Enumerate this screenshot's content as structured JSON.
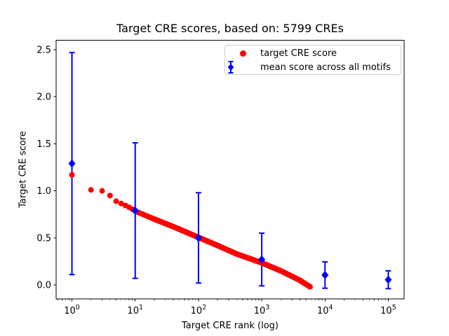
{
  "figure": {
    "title": "Target CRE scores, based on: 5799 CREs",
    "xlabel": "Target CRE rank (log)",
    "ylabel": "Target CRE score"
  },
  "legend": {
    "position": "upper right",
    "items": [
      {
        "label": "target CRE score",
        "marker": "red-circle",
        "color": "#ff0000"
      },
      {
        "label": "mean score across all motifs",
        "marker": "blue-diamond-errorbar",
        "color": "#0000ff"
      }
    ]
  },
  "chart_data": {
    "type": "scatter",
    "title": "Target CRE scores, based on: 5799 CREs",
    "xlabel": "Target CRE rank (log)",
    "ylabel": "Target CRE score",
    "x_scale": "log10",
    "xlim_log10": [
      -0.25,
      5.25
    ],
    "ylim": [
      -0.15,
      2.6
    ],
    "x_major_tick_exponents": [
      0,
      1,
      2,
      3,
      4,
      5
    ],
    "x_minor_tick_subs": [
      2,
      3,
      4,
      5,
      6,
      7,
      8,
      9
    ],
    "y_ticks": [
      0.0,
      0.5,
      1.0,
      1.5,
      2.0,
      2.5
    ],
    "grid": false,
    "background": "#ffffff",
    "text_color": "#000000",
    "series": [
      {
        "name": "target CRE score",
        "type": "dots",
        "marker": "circle",
        "color": "#ff0000",
        "n_points": 5799,
        "rank_range": [
          1,
          5799
        ],
        "anchors_log10rank_value": [
          [
            0.0,
            1.17
          ],
          [
            0.301,
            1.01
          ],
          [
            0.477,
            1.0
          ],
          [
            0.602,
            0.95
          ],
          [
            0.699,
            0.89
          ],
          [
            0.778,
            0.865
          ],
          [
            0.845,
            0.845
          ],
          [
            0.903,
            0.825
          ],
          [
            0.954,
            0.805
          ],
          [
            1.0,
            0.785
          ],
          [
            1.3,
            0.7
          ],
          [
            1.6,
            0.62
          ],
          [
            2.0,
            0.505
          ],
          [
            2.3,
            0.42
          ],
          [
            2.6,
            0.33
          ],
          [
            3.0,
            0.235
          ],
          [
            3.3,
            0.15
          ],
          [
            3.6,
            0.05
          ],
          [
            3.763,
            -0.02
          ]
        ]
      },
      {
        "name": "mean score across all motifs",
        "type": "errorbar",
        "marker": "diamond",
        "color": "#0000ff",
        "ranks": [
          1,
          10,
          100,
          1000,
          10000,
          100000
        ],
        "means": [
          1.29,
          0.79,
          0.5,
          0.27,
          0.105,
          0.055
        ],
        "errors": [
          1.18,
          0.72,
          0.48,
          0.28,
          0.14,
          0.095
        ]
      }
    ]
  }
}
